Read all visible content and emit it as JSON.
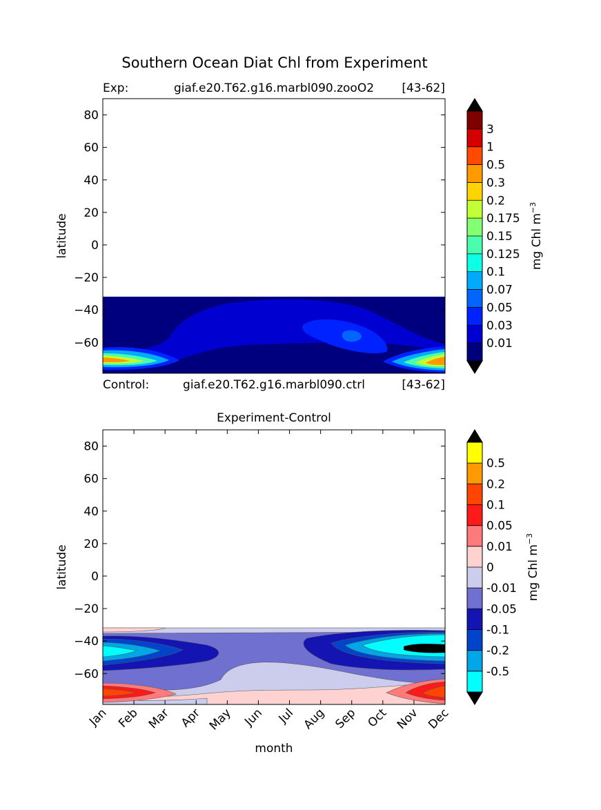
{
  "figure": {
    "title": "Southern Ocean Diat Chl from Experiment",
    "exp_label": "Exp:",
    "exp_case": "giaf.e20.T62.g16.marbl090.zooO2",
    "exp_years": "[43-62]",
    "ctrl_label": "Control:",
    "ctrl_case": "giaf.e20.T62.g16.marbl090.ctrl",
    "ctrl_years": "[43-62]"
  },
  "chart_data": [
    {
      "type": "heatmap",
      "title": "",
      "xlabel": "",
      "ylabel": "latitude",
      "ylim": [
        -79,
        90
      ],
      "yticks": [
        "80",
        "60",
        "40",
        "20",
        "0",
        "−20",
        "−40",
        "−60"
      ],
      "ytick_values": [
        80,
        60,
        40,
        20,
        0,
        -20,
        -40,
        -60
      ],
      "data_lat_top": -32,
      "colorbar": {
        "label": "mg Chl m",
        "label_exponent": "−3",
        "extend": "both",
        "tick_labels": [
          "0.01",
          "0.03",
          "0.05",
          "0.07",
          "0.1",
          "0.125",
          "0.15",
          "0.175",
          "0.2",
          "0.3",
          "0.5",
          "1",
          "3"
        ],
        "colors": [
          "#00007f",
          "#0000d0",
          "#0022ff",
          "#0066ff",
          "#00aaff",
          "#0dffe6",
          "#49ffad",
          "#83ff73",
          "#c1ff36",
          "#ffd400",
          "#ff9900",
          "#ff4a00",
          "#d40000",
          "#7f0000"
        ],
        "under_color": "#000000",
        "over_color": "#000000"
      }
    },
    {
      "type": "heatmap",
      "title": "Experiment-Control",
      "xlabel": "month",
      "ylabel": "latitude",
      "ylim": [
        -79,
        90
      ],
      "yticks": [
        "80",
        "60",
        "40",
        "20",
        "0",
        "−20",
        "−40",
        "−60"
      ],
      "ytick_values": [
        80,
        60,
        40,
        20,
        0,
        -20,
        -40,
        -60
      ],
      "categories": [
        "Jan",
        "Feb",
        "Mar",
        "Apr",
        "May",
        "Jun",
        "Jul",
        "Aug",
        "Sep",
        "Oct",
        "Nov",
        "Dec"
      ],
      "data_lat_top": -32,
      "colorbar": {
        "label": "mg Chl m",
        "label_exponent": "−3",
        "extend": "both",
        "tick_labels": [
          "-0.5",
          "-0.2",
          "-0.1",
          "-0.05",
          "-0.01",
          "0",
          "0.01",
          "0.05",
          "0.1",
          "0.2",
          "0.5"
        ],
        "colors": [
          "#00ffff",
          "#00a6e6",
          "#0044cc",
          "#1414b3",
          "#7070d0",
          "#cccced",
          "#ffd2d2",
          "#ff7a7a",
          "#ff1a1a",
          "#ff4500",
          "#ff9900",
          "#ffff00"
        ],
        "under_color": "#000000",
        "over_color": "#000000"
      }
    }
  ]
}
